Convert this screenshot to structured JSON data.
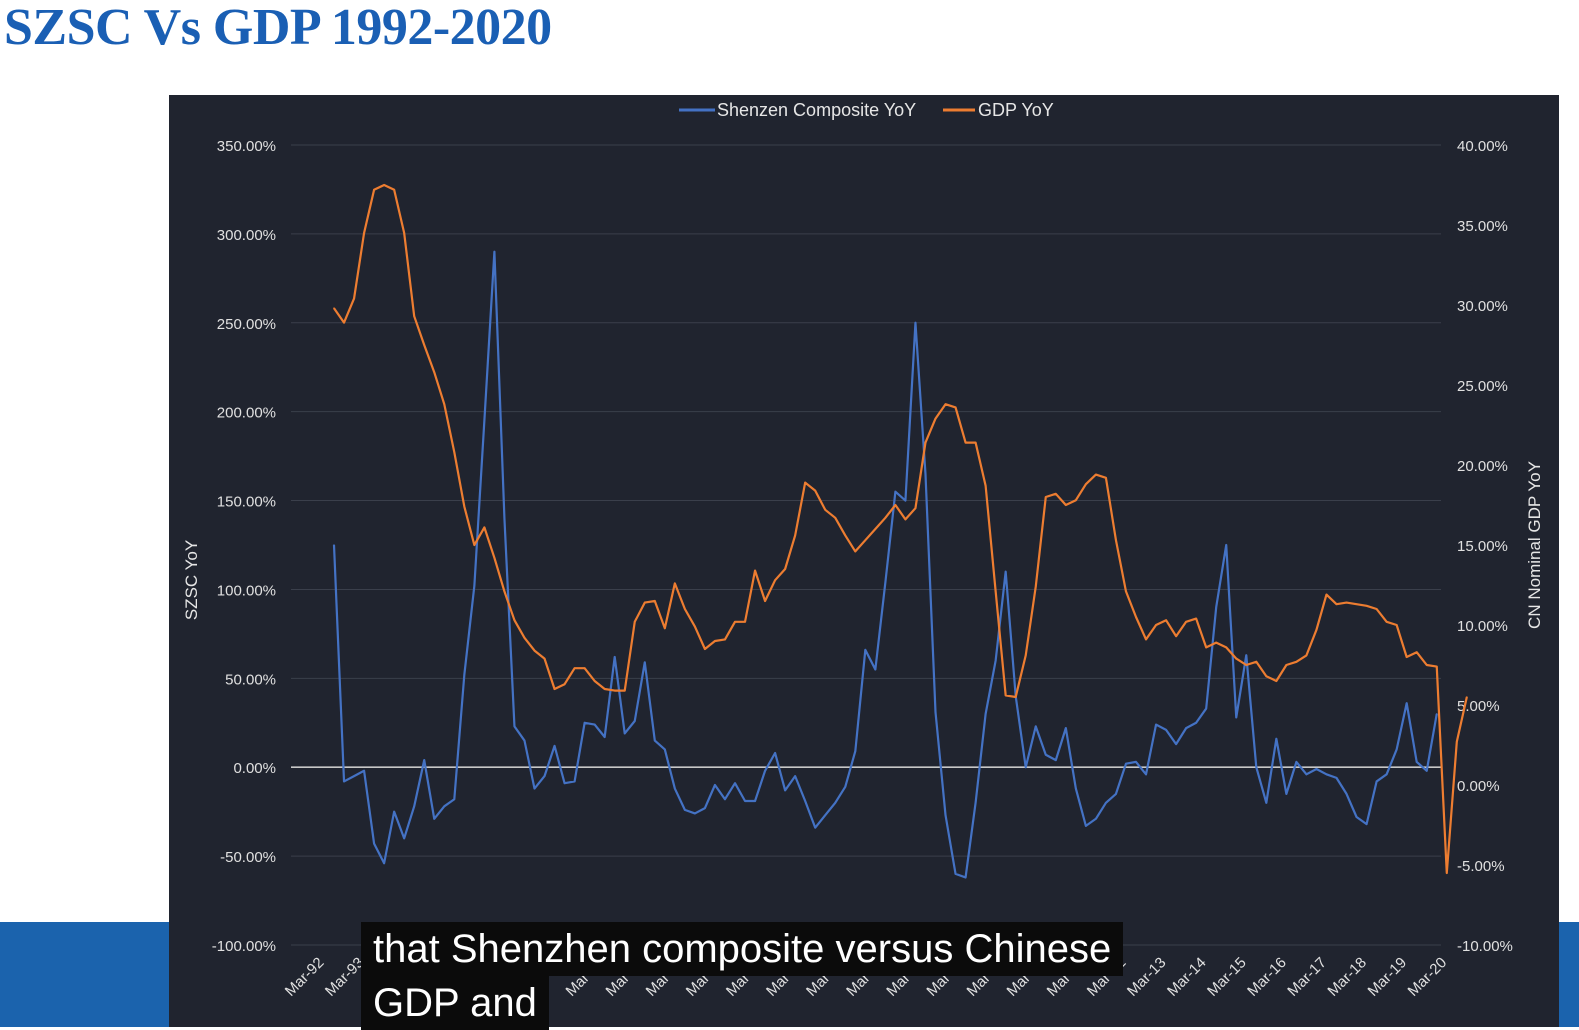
{
  "page": {
    "title": "SZSC Vs GDP 1992-2020",
    "captions": [
      "that Shenzhen composite versus Chinese",
      "GDP and"
    ]
  },
  "colors": {
    "title": "#1a5fb4",
    "panel_bg": "#20242f",
    "szsc": "#4472c4",
    "gdp": "#ed7d31",
    "band": "#1b63ad"
  },
  "chart_data": {
    "type": "line",
    "legend_position": "top-center",
    "grid": true,
    "y_left": {
      "label": "SZSC YoY",
      "range": [
        -100,
        350
      ],
      "ticks": [
        "-100.00%",
        "-50.00%",
        "0.00%",
        "50.00%",
        "100.00%",
        "150.00%",
        "200.00%",
        "250.00%",
        "300.00%",
        "350.00%"
      ]
    },
    "y_right": {
      "label": "CN Nominal GDP YoY",
      "range": [
        -10,
        40
      ],
      "ticks": [
        "-10.00%",
        "-5.00%",
        "0.00%",
        "5.00%",
        "10.00%",
        "15.00%",
        "20.00%",
        "25.00%",
        "30.00%",
        "35.00%",
        "40.00%"
      ]
    },
    "x_ticks": [
      "Mar-92",
      "Mar-93",
      "Mar-94",
      "Mar-95",
      "Mar-96",
      "Mar-97",
      "Mar-98",
      "Mar-99",
      "Mar-00",
      "Mar-01",
      "Mar-02",
      "Mar-03",
      "Mar-04",
      "Mar-05",
      "Mar-06",
      "Mar-07",
      "Mar-08",
      "Mar-09",
      "Mar-10",
      "Mar-11",
      "Mar-12",
      "Mar-13",
      "Mar-14",
      "Mar-15",
      "Mar-16",
      "Mar-17",
      "Mar-18",
      "Mar-19",
      "Mar-20"
    ],
    "series": [
      {
        "name": "Shenzen Composite YoY",
        "axis": "left",
        "x_start": "Mar-93",
        "frequency": "quarterly",
        "values": [
          125,
          -8,
          -5,
          -2,
          -43,
          -54,
          -25,
          -40,
          -22,
          4,
          -29,
          -22,
          -18,
          52,
          102,
          195,
          290,
          140,
          23,
          15,
          -12,
          -5,
          12,
          -9,
          -8,
          25,
          24,
          17,
          62,
          19,
          26,
          59,
          15,
          10,
          -12,
          -24,
          -26,
          -23,
          -10,
          -18,
          -9,
          -19,
          -19,
          -2,
          8,
          -13,
          -5,
          -19,
          -34,
          -27,
          -20,
          -11,
          9,
          66,
          55,
          104,
          155,
          150,
          250,
          165,
          31,
          -27,
          -60,
          -62,
          -20,
          30,
          60,
          110,
          40,
          0,
          23,
          7,
          4,
          22,
          -12,
          -33,
          -29,
          -20,
          -15,
          2,
          3,
          -4,
          24,
          21,
          13,
          22,
          25,
          33,
          90,
          125,
          28,
          63,
          0,
          -20,
          16,
          -15,
          3,
          -4,
          -1,
          -4,
          -6,
          -15,
          -28,
          -32,
          -8,
          -4,
          10,
          36,
          3,
          -2,
          30
        ]
      },
      {
        "name": "GDP YoY",
        "axis": "right",
        "x_start": "Mar-93",
        "frequency": "quarterly",
        "values": [
          29.8,
          28.9,
          30.4,
          34.5,
          37.2,
          37.5,
          37.2,
          34.5,
          29.3,
          27.5,
          25.8,
          23.8,
          20.8,
          17.4,
          15.0,
          16.1,
          14.2,
          12.1,
          10.3,
          9.2,
          8.4,
          7.9,
          6.0,
          6.3,
          7.3,
          7.3,
          6.5,
          6.0,
          5.9,
          5.9,
          10.2,
          11.4,
          11.5,
          9.8,
          12.6,
          11.0,
          9.9,
          8.5,
          9.0,
          9.1,
          10.2,
          10.2,
          13.4,
          11.5,
          12.8,
          13.5,
          15.6,
          18.9,
          18.4,
          17.2,
          16.7,
          15.6,
          14.6,
          15.3,
          16.0,
          16.7,
          17.5,
          16.6,
          17.3,
          21.4,
          22.9,
          23.8,
          23.6,
          21.4,
          21.4,
          18.7,
          12.1,
          5.6,
          5.5,
          8.1,
          12.4,
          18.0,
          18.2,
          17.5,
          17.8,
          18.8,
          19.4,
          19.2,
          15.3,
          12.1,
          10.5,
          9.1,
          10.0,
          10.3,
          9.3,
          10.2,
          10.4,
          8.6,
          8.9,
          8.6,
          7.9,
          7.5,
          7.7,
          6.8,
          6.5,
          7.5,
          7.7,
          8.1,
          9.7,
          11.9,
          11.3,
          11.4,
          11.3,
          11.2,
          11.0,
          10.2,
          10.0,
          8.0,
          8.3,
          7.5,
          7.4,
          -5.5,
          2.7,
          5.5
        ]
      }
    ]
  }
}
